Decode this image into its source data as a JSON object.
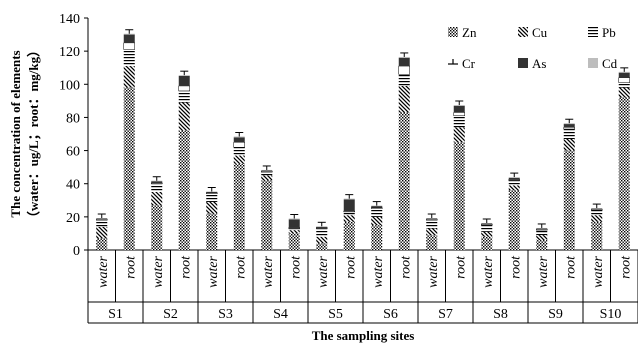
{
  "chart_data": {
    "type": "bar",
    "stacked": true,
    "title": "",
    "xlabel": "The sampling sites",
    "ylabel_line1": "The concentration of elements",
    "ylabel_line2": "（water：ug/L；root：mg/kg）",
    "ylim": [
      0,
      140
    ],
    "yticks": [
      "0",
      "20",
      "40",
      "60",
      "80",
      "100",
      "120",
      "140"
    ],
    "sites": [
      "S1",
      "S2",
      "S3",
      "S4",
      "S5",
      "S6",
      "S7",
      "S8",
      "S9",
      "S10"
    ],
    "sample_types": [
      "water",
      "root"
    ],
    "categories": [
      "S1 water",
      "S1 root",
      "S2 water",
      "S2 root",
      "S3 water",
      "S3 root",
      "S4 water",
      "S4 root",
      "S5 water",
      "S5 root",
      "S6 water",
      "S6 root",
      "S7 water",
      "S7 root",
      "S8 water",
      "S8 root",
      "S9 water",
      "S9 root",
      "S10 water",
      "S10 root"
    ],
    "series": [
      {
        "name": "Zn",
        "values": [
          7,
          98,
          27,
          72,
          22,
          52,
          42,
          10,
          4,
          17,
          15,
          83,
          9,
          65,
          8,
          36,
          6,
          60,
          17,
          92
        ]
      },
      {
        "name": "Cu",
        "values": [
          7,
          13,
          8,
          17,
          7,
          5,
          3,
          2,
          4,
          4,
          5,
          16,
          4,
          9,
          3,
          3,
          3,
          7,
          4,
          6
        ]
      },
      {
        "name": "Pb",
        "values": [
          4,
          10,
          5,
          7,
          5,
          5,
          2,
          1,
          5,
          2,
          5,
          7,
          5,
          7,
          4,
          3,
          3,
          6,
          3,
          3
        ]
      },
      {
        "name": "Cr",
        "values": [
          0.5,
          4,
          0.5,
          3,
          0.5,
          3,
          0.5,
          0.5,
          0.5,
          0.5,
          0.5,
          5,
          0.5,
          2,
          0.5,
          0.5,
          0.5,
          1,
          0.5,
          3
        ]
      },
      {
        "name": "As",
        "values": [
          0.5,
          5,
          1,
          6,
          0.5,
          3,
          0.5,
          5,
          0.5,
          7,
          1,
          5,
          0.5,
          4,
          0.5,
          1,
          0.5,
          2,
          0.5,
          3
        ]
      },
      {
        "name": "Cd",
        "values": [
          0.3,
          0.5,
          0.3,
          0.5,
          0.3,
          0.5,
          0.3,
          0.5,
          0.3,
          0.5,
          0.3,
          0.5,
          0.3,
          0.5,
          0.3,
          0.5,
          0.3,
          0.5,
          0.3,
          0.5
        ]
      }
    ],
    "legend": {
      "position": "top-right",
      "columns": 3
    },
    "grid": false,
    "error_bars": true
  }
}
